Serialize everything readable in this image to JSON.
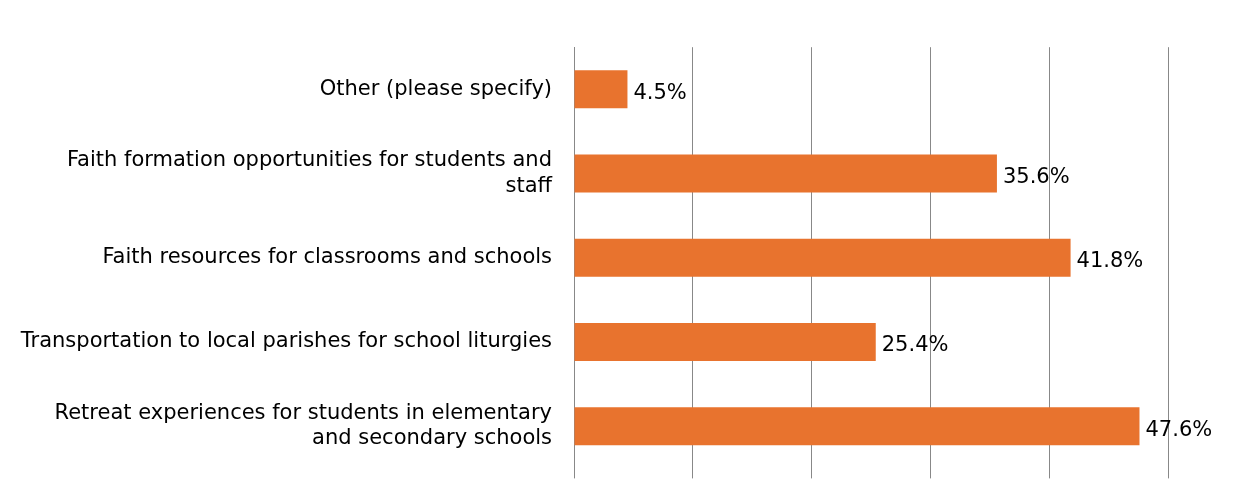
{
  "chart_data": {
    "type": "bar",
    "orientation": "horizontal",
    "categories": [
      "Other (please specify)",
      "Faith formation opportunities for students and staff",
      "Faith resources for classrooms and schools",
      "Transportation to local parishes for school liturgies",
      "Retreat experiences for students in elementary and secondary schools"
    ],
    "values": [
      4.5,
      35.6,
      41.8,
      25.4,
      47.6
    ],
    "value_labels": [
      "4.5%",
      "35.6%",
      "41.8%",
      "25.4%",
      "47.6%"
    ],
    "color": "#e8732e",
    "xlim": [
      0,
      50
    ],
    "xticks": [
      {
        "value": 0,
        "label": null
      },
      {
        "value": 10,
        "label": null
      },
      {
        "value": 20,
        "label": null
      },
      {
        "value": 30,
        "label": null
      },
      {
        "value": 40,
        "label": null
      },
      {
        "value": 50,
        "label": null
      }
    ],
    "tick_labels": "y",
    "grid": "x",
    "legend": false
  }
}
